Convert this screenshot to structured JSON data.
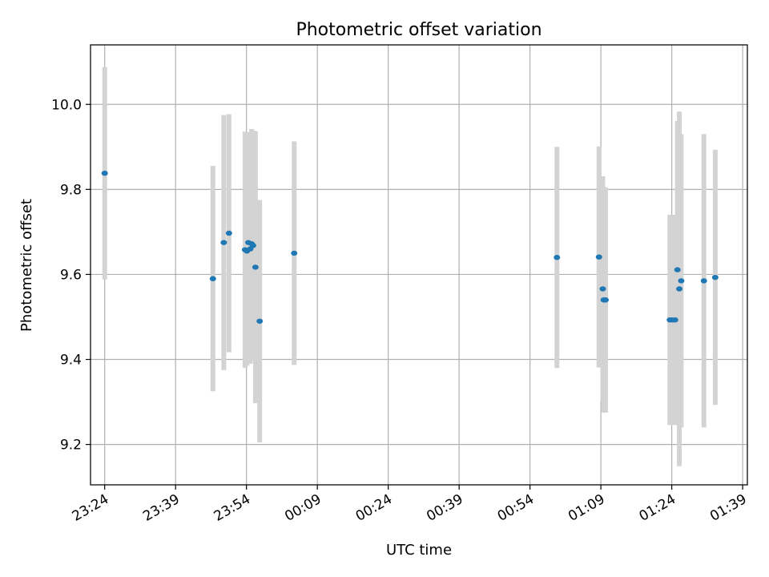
{
  "chart_data": {
    "type": "scatter",
    "title": "Photometric offset variation",
    "xlabel": "UTC time",
    "ylabel": "Photometric offset",
    "grid": true,
    "ylim": [
      9.105,
      10.14
    ],
    "xlim": [
      "23:21",
      "01:40"
    ],
    "yticks": [
      9.2,
      9.4,
      9.6,
      9.8,
      10.0
    ],
    "ytick_labels": [
      "9.2",
      "9.4",
      "9.6",
      "9.8",
      "10.0"
    ],
    "xticks": [
      "23:24",
      "23:39",
      "23:54",
      "00:09",
      "00:24",
      "00:39",
      "00:54",
      "01:09",
      "01:24",
      "01:39"
    ],
    "colors": {
      "points": "#1f77b4",
      "errorbars": "#d3d3d3",
      "grid": "#b0b0b0"
    },
    "points": [
      {
        "t": "23:24:00",
        "y": 9.838,
        "err": 0.25
      },
      {
        "t": "23:46:54",
        "y": 9.59,
        "err": 0.265
      },
      {
        "t": "23:49:12",
        "y": 9.675,
        "err": 0.3
      },
      {
        "t": "23:50:18",
        "y": 9.697,
        "err": 0.28
      },
      {
        "t": "23:53:42",
        "y": 9.658,
        "err": 0.278
      },
      {
        "t": "23:54:06",
        "y": 9.655,
        "err": 0.27
      },
      {
        "t": "23:54:24",
        "y": 9.675,
        "err": 0.26
      },
      {
        "t": "23:54:48",
        "y": 9.66,
        "err": 0.27
      },
      {
        "t": "23:55:06",
        "y": 9.672,
        "err": 0.27
      },
      {
        "t": "23:55:24",
        "y": 9.668,
        "err": 0.27
      },
      {
        "t": "23:55:54",
        "y": 9.617,
        "err": 0.32
      },
      {
        "t": "23:56:48",
        "y": 9.49,
        "err": 0.285
      },
      {
        "t": "00:04:06",
        "y": 9.65,
        "err": 0.263
      },
      {
        "t": "00:59:42",
        "y": 9.64,
        "err": 0.26
      },
      {
        "t": "01:08:36",
        "y": 9.641,
        "err": 0.26
      },
      {
        "t": "01:09:24",
        "y": 9.566,
        "err": 0.265
      },
      {
        "t": "01:09:36",
        "y": 9.54,
        "err": 0.265
      },
      {
        "t": "01:10:00",
        "y": 9.54,
        "err": 0.265
      },
      {
        "t": "01:23:36",
        "y": 9.493,
        "err": 0.247
      },
      {
        "t": "01:24:06",
        "y": 9.493,
        "err": 0.247
      },
      {
        "t": "01:24:42",
        "y": 9.493,
        "err": 0.247
      },
      {
        "t": "01:25:12",
        "y": 9.611,
        "err": 0.35
      },
      {
        "t": "01:25:36",
        "y": 9.566,
        "err": 0.417
      },
      {
        "t": "01:26:00",
        "y": 9.585,
        "err": 0.345
      },
      {
        "t": "01:30:48",
        "y": 9.585,
        "err": 0.345
      },
      {
        "t": "01:33:12",
        "y": 9.593,
        "err": 0.3
      }
    ]
  }
}
